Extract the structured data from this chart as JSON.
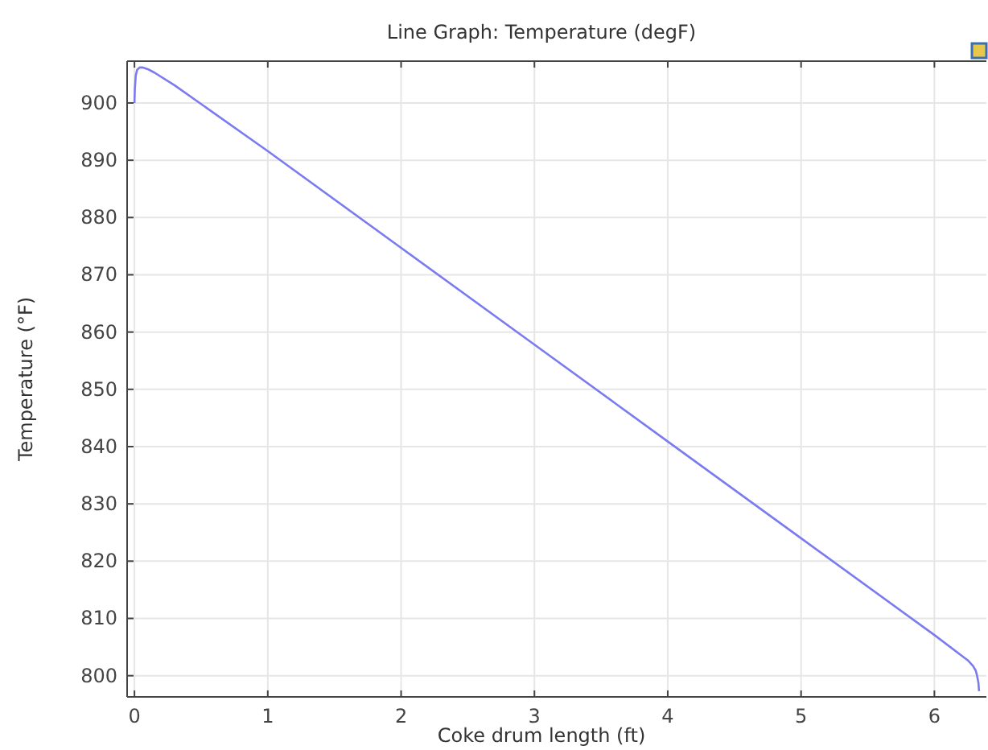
{
  "chart_data": {
    "type": "line",
    "title": "Line Graph: Temperature (degF)",
    "xlabel": "Coke drum length (ft)",
    "ylabel": "Temperature (°F)",
    "x": [
      0,
      0.003,
      0.01,
      0.02,
      0.04,
      0.06,
      0.1,
      0.15,
      0.3,
      1,
      2,
      3,
      4,
      5,
      6,
      6.25,
      6.29,
      6.31,
      6.32,
      6.33,
      6.335
    ],
    "series": [
      {
        "color": "#7b7bf0",
        "values": [
          900,
          902.5,
          904.8,
          905.8,
          906.2,
          906.2,
          905.9,
          905.3,
          903.1,
          891.6,
          874.7,
          857.8,
          840.9,
          824,
          807.1,
          802.7,
          801.7,
          800.9,
          800,
          798.8,
          797.3
        ]
      }
    ],
    "xlim": [
      -0.055,
      6.39
    ],
    "ylim": [
      796.3,
      907.3
    ],
    "xticks": [
      0,
      1,
      2,
      3,
      4,
      5,
      6
    ],
    "yticks": [
      800,
      810,
      820,
      830,
      840,
      850,
      860,
      870,
      880,
      890,
      900
    ],
    "grid": true,
    "line_style": "solid",
    "marker": "none"
  }
}
